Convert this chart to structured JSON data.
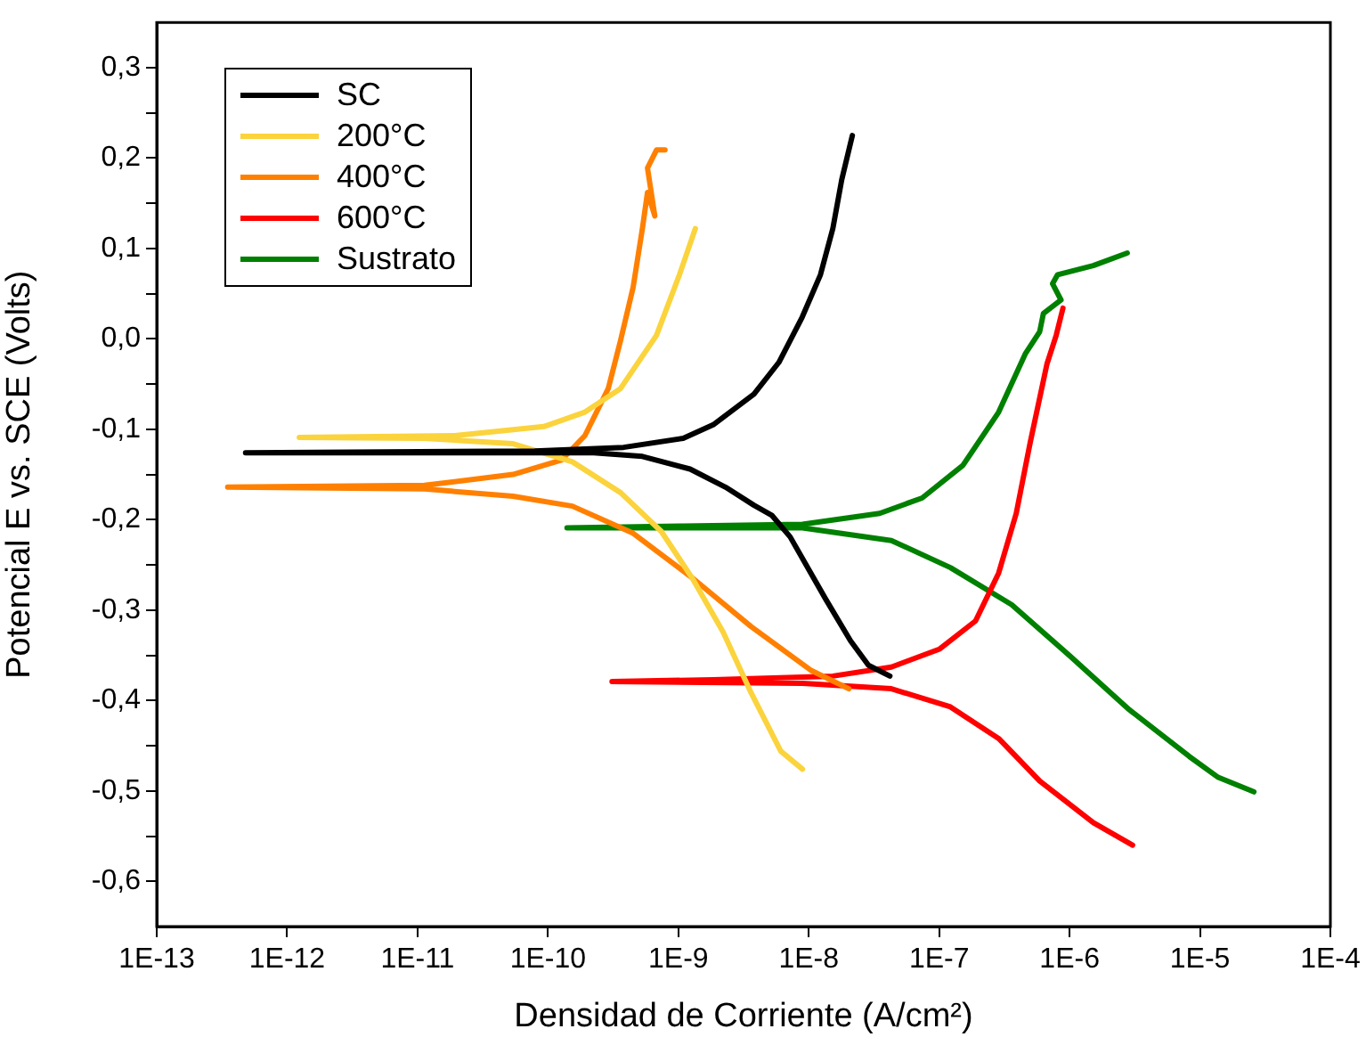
{
  "chart_data": {
    "type": "line",
    "xlabel": "Densidad de Corriente (A/cm²)",
    "ylabel": "Potencial E vs. SCE (Volts)",
    "log": "x",
    "xlim": [
      1e-13,
      0.0001
    ],
    "xticks": [
      {
        "value": 1e-13,
        "label": "1E-13"
      },
      {
        "value": 1e-12,
        "label": "1E-12"
      },
      {
        "value": 1e-11,
        "label": "1E-11"
      },
      {
        "value": 1e-10,
        "label": "1E-10"
      },
      {
        "value": 1e-09,
        "label": "1E-9"
      },
      {
        "value": 1e-08,
        "label": "1E-8"
      },
      {
        "value": 1e-07,
        "label": "1E-7"
      },
      {
        "value": 1e-06,
        "label": "1E-6"
      },
      {
        "value": 1e-05,
        "label": "1E-5"
      },
      {
        "value": 0.0001,
        "label": "1E-4"
      }
    ],
    "ylim": [
      -0.65,
      0.35
    ],
    "yticks": [
      {
        "value": -0.6,
        "label": "-0,6"
      },
      {
        "value": -0.5,
        "label": "-0,5"
      },
      {
        "value": -0.4,
        "label": "-0,4"
      },
      {
        "value": -0.3,
        "label": "-0,3"
      },
      {
        "value": -0.2,
        "label": "-0,2"
      },
      {
        "value": -0.1,
        "label": "-0,1"
      },
      {
        "value": 0,
        "label": "0,0"
      },
      {
        "value": 0.1,
        "label": "0,1"
      },
      {
        "value": 0.2,
        "label": "0,2"
      },
      {
        "value": 0.3,
        "label": "0,3"
      },
      {
        "value": -0.55,
        "label": null
      },
      {
        "value": -0.45,
        "label": null
      },
      {
        "value": -0.35,
        "label": null
      },
      {
        "value": -0.25,
        "label": null
      },
      {
        "value": -0.15,
        "label": null
      },
      {
        "value": -0.05,
        "label": null
      },
      {
        "value": 0.05,
        "label": null
      },
      {
        "value": 0.15,
        "label": null
      },
      {
        "value": 0.25,
        "label": null
      }
    ],
    "grid": false,
    "legend": "top left",
    "marker": "none",
    "line_style": "solid",
    "series": [
      {
        "name": "SC",
        "color": "#000000",
        "x": [
          4.19e-08,
          2.87e-08,
          2.09e-08,
          1.35e-08,
          7.2e-09,
          5.2e-09,
          3.8e-09,
          2.3e-09,
          1.23e-09,
          5.3e-10,
          2.25e-10,
          1.6e-11,
          4.8e-13,
          7.9e-11,
          3.8e-10,
          1.09e-09,
          1.85e-09,
          3.8e-09,
          5.9e-09,
          8.9e-09,
          1.23e-08,
          1.53e-08,
          1.79e-08,
          2.16e-08
        ],
        "values": [
          -0.373,
          -0.361,
          -0.334,
          -0.288,
          -0.219,
          -0.195,
          -0.184,
          -0.164,
          -0.144,
          -0.13,
          -0.126,
          -0.126,
          -0.126,
          -0.124,
          -0.12,
          -0.11,
          -0.095,
          -0.061,
          -0.026,
          0.024,
          0.071,
          0.122,
          0.176,
          0.225
        ]
      },
      {
        "name": "200°C",
        "color": "#fbd33c",
        "x": [
          8.95e-09,
          6.1e-09,
          3.6e-09,
          2.2e-09,
          1.27e-09,
          7.4e-10,
          3.6e-10,
          1.54e-10,
          5.4e-11,
          1.13e-11,
          1.24e-12,
          1.93e-11,
          9.3e-11,
          1.92e-10,
          3.6e-10,
          6.8e-10,
          1.02e-09,
          1.35e-09
        ],
        "values": [
          -0.476,
          -0.456,
          -0.391,
          -0.324,
          -0.264,
          -0.213,
          -0.17,
          -0.136,
          -0.116,
          -0.11,
          -0.109,
          -0.107,
          -0.097,
          -0.081,
          -0.055,
          0.004,
          0.071,
          0.122
        ]
      },
      {
        "name": "400°C",
        "color": "#ff8000",
        "x": [
          2.03e-08,
          1.05e-08,
          3.6e-09,
          1.27e-09,
          4.5e-10,
          1.54e-10,
          5.4e-11,
          1.13e-11,
          3.5e-13,
          1.13e-11,
          5.4e-11,
          1.27e-10,
          1.92e-10,
          2.9e-10,
          3.6e-10,
          4.5e-10,
          5.3e-10,
          5.8e-10,
          6.6e-10,
          5.8e-10,
          6.8e-10,
          7.9e-10
        ],
        "values": [
          -0.387,
          -0.367,
          -0.318,
          -0.264,
          -0.215,
          -0.185,
          -0.174,
          -0.166,
          -0.164,
          -0.162,
          -0.15,
          -0.134,
          -0.107,
          -0.055,
          -0.002,
          0.057,
          0.122,
          0.162,
          0.136,
          0.189,
          0.209,
          0.209
        ]
      },
      {
        "name": "600°C",
        "color": "#ff0000",
        "x": [
          3.04e-06,
          1.52e-06,
          5.9e-07,
          2.86e-07,
          1.22e-07,
          4.3e-08,
          8.95e-09,
          3.1e-10,
          1.85e-09,
          1.53e-08,
          4.3e-08,
          1.01e-07,
          1.9e-07,
          2.86e-07,
          3.9e-07,
          5e-07,
          6.7e-07,
          7.9e-07,
          8.9e-07
        ],
        "values": [
          -0.56,
          -0.535,
          -0.489,
          -0.442,
          -0.407,
          -0.387,
          -0.381,
          -0.379,
          -0.377,
          -0.373,
          -0.363,
          -0.343,
          -0.312,
          -0.259,
          -0.193,
          -0.114,
          -0.028,
          0.004,
          0.034
        ]
      },
      {
        "name": "Sustrato",
        "color": "#008000",
        "x": [
          2.59e-05,
          1.38e-05,
          8.3e-06,
          2.86e-06,
          1.01e-06,
          3.6e-07,
          1.22e-07,
          4.3e-08,
          8.95e-09,
          1.4e-10,
          1.09e-09,
          8.95e-09,
          3.5e-08,
          7.4e-08,
          1.52e-07,
          2.86e-07,
          4.6e-07,
          5.9e-07,
          6.3e-07,
          8.6e-07,
          7.4e-07,
          8.1e-07,
          1.52e-06,
          2.77e-06
        ],
        "values": [
          -0.501,
          -0.485,
          -0.462,
          -0.41,
          -0.351,
          -0.294,
          -0.253,
          -0.223,
          -0.209,
          -0.209,
          -0.207,
          -0.205,
          -0.193,
          -0.176,
          -0.14,
          -0.081,
          -0.016,
          0.008,
          0.028,
          0.043,
          0.061,
          0.071,
          0.081,
          0.095
        ]
      }
    ]
  }
}
